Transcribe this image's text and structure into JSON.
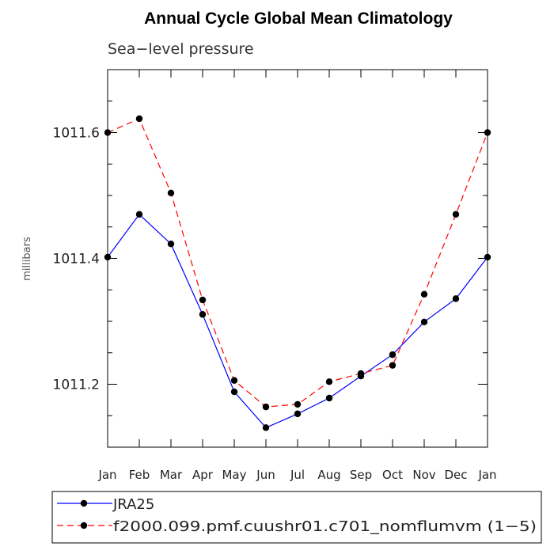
{
  "chart_data": {
    "type": "line",
    "title": "Annual Cycle Global Mean Climatology",
    "subtitle": "Sea−level pressure",
    "xlabel": "",
    "ylabel": "millibars",
    "categories": [
      "Jan",
      "Feb",
      "Mar",
      "Apr",
      "May",
      "Jun",
      "Jul",
      "Aug",
      "Sep",
      "Oct",
      "Nov",
      "Dec",
      "Jan"
    ],
    "ylim": [
      1011.1,
      1011.7
    ],
    "yticks": [
      1011.2,
      1011.4,
      1011.6
    ],
    "ytick_labels": [
      "1011.2",
      "1011.4",
      "1011.6"
    ],
    "grid": false,
    "legend_position": "bottom",
    "series": [
      {
        "name": "JRA25",
        "color": "#0000ff",
        "line_style": "solid",
        "marker": "dot",
        "values": [
          1011.402,
          1011.47,
          1011.423,
          1011.311,
          1011.188,
          1011.131,
          1011.153,
          1011.178,
          1011.213,
          1011.247,
          1011.299,
          1011.336,
          1011.402
        ]
      },
      {
        "name": "f2000.099.pmf.cuushr01.c701_nomflumvm (1−5)",
        "color": "#ff0000",
        "line_style": "dashed",
        "marker": "dot",
        "values": [
          1011.6,
          1011.622,
          1011.504,
          1011.334,
          1011.206,
          1011.164,
          1011.168,
          1011.204,
          1011.217,
          1011.23,
          1011.343,
          1011.47,
          1011.6
        ]
      }
    ]
  }
}
